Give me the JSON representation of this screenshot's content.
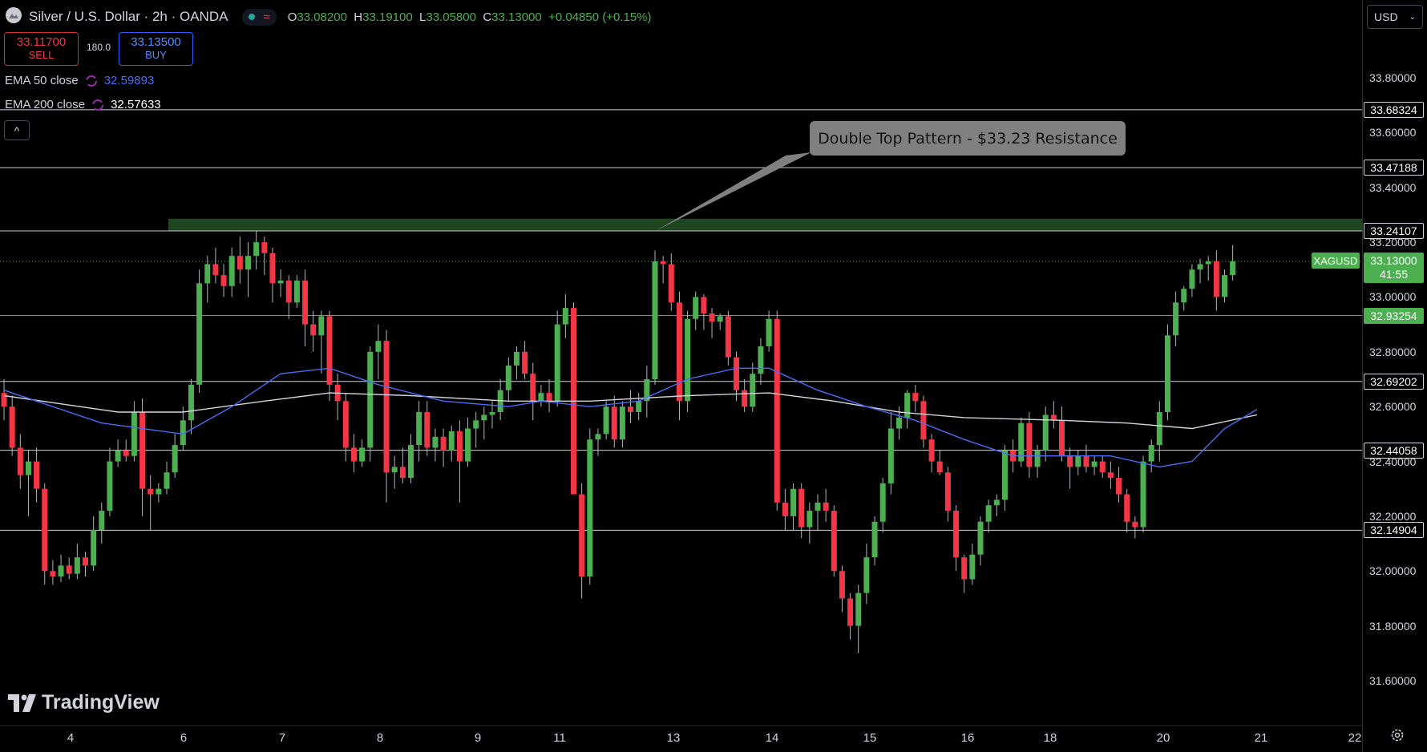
{
  "header": {
    "title": "Silver / U.S. Dollar · 2h · OANDA",
    "ohlc": [
      {
        "k": "O",
        "v": "33.08200"
      },
      {
        "k": "H",
        "v": "33.19100"
      },
      {
        "k": "L",
        "v": "33.05800"
      },
      {
        "k": "C",
        "v": "33.13000"
      }
    ],
    "change": "+0.04850 (+0.15%)"
  },
  "trade": {
    "sell_price": "33.11700",
    "sell_label": "SELL",
    "spread": "180.0",
    "buy_price": "33.13500",
    "buy_label": "BUY"
  },
  "indicators": [
    {
      "name": "EMA 50 close",
      "value": "32.59893",
      "color": "#4a6cf7"
    },
    {
      "name": "EMA 200 close",
      "value": "32.57633",
      "color": "#d1d4dc"
    }
  ],
  "currency_select": "USD",
  "symbol_tag": "XAGUSD",
  "last_price": {
    "value": "33.13000",
    "countdown": "41:55"
  },
  "callout": "Double Top Pattern - $33.23 Resistance",
  "logo_text": "TradingView",
  "colors": {
    "up": "#4caf50",
    "down": "#f23645",
    "ema50": "#4a6cf7",
    "ema200": "#d1d4dc",
    "zone": "#1e4620"
  },
  "chart_data": {
    "type": "candlestick",
    "title": "Silver / U.S. Dollar · 2h · OANDA",
    "y_ticks": [
      "33.80000",
      "33.60000",
      "33.40000",
      "33.20000",
      "33.00000",
      "32.80000",
      "32.60000",
      "32.40000",
      "32.20000",
      "32.00000",
      "31.80000",
      "31.60000"
    ],
    "y_range": [
      31.5,
      33.9
    ],
    "x_ticks": [
      "4",
      "6",
      "7",
      "8",
      "9",
      "11",
      "13",
      "14",
      "15",
      "16",
      "18",
      "20",
      "21",
      "22"
    ],
    "levels": [
      {
        "value": 33.68324,
        "label": "33.68324"
      },
      {
        "value": 33.47188,
        "label": "33.47188"
      },
      {
        "value": 33.24107,
        "label": "33.24107"
      },
      {
        "value": 32.93254,
        "label": "32.93254",
        "style": "green"
      },
      {
        "value": 32.69202,
        "label": "32.69202"
      },
      {
        "value": 32.44058,
        "label": "32.44058"
      },
      {
        "value": 32.14904,
        "label": "32.14904"
      }
    ],
    "resistance_zone": [
      33.24,
      33.28
    ],
    "last_price": 33.13,
    "candles": [
      [
        32.65,
        32.7,
        32.55,
        32.6
      ],
      [
        32.6,
        32.64,
        32.42,
        32.45
      ],
      [
        32.45,
        32.5,
        32.3,
        32.35
      ],
      [
        32.35,
        32.44,
        32.2,
        32.4
      ],
      [
        32.4,
        32.45,
        32.25,
        32.3
      ],
      [
        32.3,
        32.32,
        31.95,
        32.0
      ],
      [
        32.0,
        32.04,
        31.95,
        31.98
      ],
      [
        31.98,
        32.06,
        31.96,
        32.02
      ],
      [
        32.02,
        32.05,
        31.97,
        31.99
      ],
      [
        31.99,
        32.1,
        31.97,
        32.05
      ],
      [
        32.05,
        32.07,
        31.98,
        32.02
      ],
      [
        32.02,
        32.2,
        32.0,
        32.15
      ],
      [
        32.15,
        32.25,
        32.1,
        32.22
      ],
      [
        32.22,
        32.45,
        32.2,
        32.4
      ],
      [
        32.4,
        32.48,
        32.38,
        32.44
      ],
      [
        32.44,
        32.48,
        32.4,
        32.42
      ],
      [
        32.42,
        32.62,
        32.4,
        32.58
      ],
      [
        32.58,
        32.63,
        32.2,
        32.3
      ],
      [
        32.3,
        32.35,
        32.15,
        32.28
      ],
      [
        32.28,
        32.32,
        32.25,
        32.3
      ],
      [
        32.3,
        32.4,
        32.28,
        32.36
      ],
      [
        32.36,
        32.5,
        32.34,
        32.46
      ],
      [
        32.46,
        32.6,
        32.44,
        32.55
      ],
      [
        32.55,
        32.7,
        32.5,
        32.68
      ],
      [
        32.68,
        33.1,
        32.65,
        33.05
      ],
      [
        33.05,
        33.15,
        32.98,
        33.12
      ],
      [
        33.12,
        33.18,
        33.05,
        33.08
      ],
      [
        33.08,
        33.12,
        33.0,
        33.04
      ],
      [
        33.04,
        33.18,
        33.0,
        33.15
      ],
      [
        33.15,
        33.22,
        33.05,
        33.1
      ],
      [
        33.1,
        33.2,
        33.0,
        33.15
      ],
      [
        33.15,
        33.24,
        33.1,
        33.2
      ],
      [
        33.2,
        33.22,
        33.08,
        33.16
      ],
      [
        33.16,
        33.18,
        32.98,
        33.05
      ],
      [
        33.05,
        33.1,
        33.0,
        33.06
      ],
      [
        33.06,
        33.08,
        32.92,
        32.98
      ],
      [
        32.98,
        33.08,
        32.96,
        33.06
      ],
      [
        33.06,
        33.1,
        32.82,
        32.9
      ],
      [
        32.9,
        32.95,
        32.8,
        32.86
      ],
      [
        32.86,
        32.95,
        32.72,
        32.93
      ],
      [
        32.93,
        32.95,
        32.62,
        32.68
      ],
      [
        32.68,
        32.72,
        32.55,
        32.62
      ],
      [
        32.62,
        32.65,
        32.4,
        32.45
      ],
      [
        32.45,
        32.5,
        32.36,
        32.4
      ],
      [
        32.4,
        32.48,
        32.38,
        32.45
      ],
      [
        32.45,
        32.82,
        32.4,
        32.8
      ],
      [
        32.8,
        32.9,
        32.7,
        32.84
      ],
      [
        32.84,
        32.88,
        32.25,
        32.36
      ],
      [
        32.36,
        32.42,
        32.3,
        32.38
      ],
      [
        32.38,
        32.45,
        32.32,
        32.34
      ],
      [
        32.34,
        32.5,
        32.32,
        32.46
      ],
      [
        32.46,
        32.62,
        32.4,
        32.58
      ],
      [
        32.58,
        32.62,
        32.42,
        32.45
      ],
      [
        32.45,
        32.52,
        32.4,
        32.49
      ],
      [
        32.49,
        32.52,
        32.38,
        32.44
      ],
      [
        32.44,
        32.53,
        32.4,
        32.51
      ],
      [
        32.51,
        32.55,
        32.25,
        32.4
      ],
      [
        32.4,
        32.56,
        32.38,
        32.52
      ],
      [
        32.52,
        32.58,
        32.45,
        32.55
      ],
      [
        32.55,
        32.6,
        32.48,
        32.57
      ],
      [
        32.57,
        32.62,
        32.52,
        32.58
      ],
      [
        32.58,
        32.7,
        32.55,
        32.66
      ],
      [
        32.66,
        32.78,
        32.62,
        32.75
      ],
      [
        32.75,
        32.82,
        32.7,
        32.8
      ],
      [
        32.8,
        32.84,
        32.7,
        32.72
      ],
      [
        32.72,
        32.76,
        32.55,
        32.62
      ],
      [
        32.62,
        32.68,
        32.6,
        32.65
      ],
      [
        32.65,
        32.7,
        32.58,
        32.62
      ],
      [
        32.62,
        32.95,
        32.6,
        32.9
      ],
      [
        32.9,
        33.01,
        32.85,
        32.96
      ],
      [
        32.96,
        32.98,
        32.28,
        32.28
      ],
      [
        32.28,
        32.32,
        31.9,
        31.98
      ],
      [
        31.98,
        32.52,
        31.95,
        32.48
      ],
      [
        32.48,
        32.52,
        32.42,
        32.5
      ],
      [
        32.5,
        32.62,
        32.48,
        32.6
      ],
      [
        32.6,
        32.64,
        32.45,
        32.48
      ],
      [
        32.48,
        32.62,
        32.45,
        32.6
      ],
      [
        32.6,
        32.66,
        32.54,
        32.58
      ],
      [
        32.58,
        32.65,
        32.55,
        32.62
      ],
      [
        32.62,
        32.75,
        32.56,
        32.7
      ],
      [
        32.7,
        33.17,
        32.68,
        33.13
      ],
      [
        33.13,
        33.15,
        33.05,
        33.12
      ],
      [
        33.12,
        33.16,
        32.95,
        32.98
      ],
      [
        32.98,
        33.02,
        32.55,
        32.62
      ],
      [
        32.62,
        32.95,
        32.58,
        32.92
      ],
      [
        32.92,
        33.02,
        32.88,
        33.0
      ],
      [
        33.0,
        33.01,
        32.88,
        32.94
      ],
      [
        32.94,
        32.96,
        32.85,
        32.91
      ],
      [
        32.91,
        32.94,
        32.88,
        32.93
      ],
      [
        32.93,
        32.95,
        32.75,
        32.78
      ],
      [
        32.78,
        32.8,
        32.62,
        32.66
      ],
      [
        32.66,
        32.7,
        32.58,
        32.6
      ],
      [
        32.6,
        32.76,
        32.58,
        32.72
      ],
      [
        32.72,
        32.85,
        32.68,
        32.82
      ],
      [
        32.82,
        32.95,
        32.8,
        32.92
      ],
      [
        32.92,
        32.95,
        32.22,
        32.25
      ],
      [
        32.25,
        32.3,
        32.15,
        32.2
      ],
      [
        32.2,
        32.32,
        32.15,
        32.3
      ],
      [
        32.3,
        32.32,
        32.12,
        32.16
      ],
      [
        32.16,
        32.25,
        32.1,
        32.22
      ],
      [
        32.22,
        32.28,
        32.15,
        32.25
      ],
      [
        32.25,
        32.3,
        32.18,
        32.22
      ],
      [
        32.22,
        32.24,
        31.98,
        32.0
      ],
      [
        32.0,
        32.02,
        31.85,
        31.9
      ],
      [
        31.9,
        31.92,
        31.75,
        31.8
      ],
      [
        31.8,
        31.95,
        31.7,
        31.92
      ],
      [
        31.92,
        32.1,
        31.88,
        32.05
      ],
      [
        32.05,
        32.2,
        32.02,
        32.18
      ],
      [
        32.18,
        32.34,
        32.14,
        32.32
      ],
      [
        32.32,
        32.58,
        32.28,
        32.52
      ],
      [
        32.52,
        32.6,
        32.48,
        32.56
      ],
      [
        32.56,
        32.66,
        32.52,
        32.65
      ],
      [
        32.65,
        32.68,
        32.58,
        32.62
      ],
      [
        32.62,
        32.64,
        32.45,
        32.48
      ],
      [
        32.48,
        32.5,
        32.36,
        32.4
      ],
      [
        32.4,
        32.44,
        32.35,
        32.36
      ],
      [
        32.36,
        32.38,
        32.18,
        32.22
      ],
      [
        32.22,
        32.24,
        32.0,
        32.05
      ],
      [
        32.05,
        32.06,
        31.92,
        31.97
      ],
      [
        31.97,
        32.1,
        31.95,
        32.06
      ],
      [
        32.06,
        32.2,
        32.02,
        32.18
      ],
      [
        32.18,
        32.26,
        32.14,
        32.24
      ],
      [
        32.24,
        32.28,
        32.2,
        32.26
      ],
      [
        32.26,
        32.46,
        32.22,
        32.44
      ],
      [
        32.44,
        32.48,
        32.36,
        32.4
      ],
      [
        32.4,
        32.56,
        32.38,
        32.54
      ],
      [
        32.54,
        32.58,
        32.34,
        32.38
      ],
      [
        32.38,
        32.46,
        32.34,
        32.44
      ],
      [
        32.44,
        32.6,
        32.4,
        32.57
      ],
      [
        32.57,
        32.62,
        32.52,
        32.55
      ],
      [
        32.55,
        32.6,
        32.4,
        32.42
      ],
      [
        32.42,
        32.45,
        32.3,
        32.38
      ],
      [
        32.38,
        32.44,
        32.35,
        32.42
      ],
      [
        32.42,
        32.46,
        32.36,
        32.38
      ],
      [
        32.38,
        32.42,
        32.35,
        32.4
      ],
      [
        32.4,
        32.42,
        32.34,
        32.36
      ],
      [
        32.36,
        32.4,
        32.3,
        32.34
      ],
      [
        32.34,
        32.38,
        32.25,
        32.28
      ],
      [
        32.28,
        32.3,
        32.14,
        32.18
      ],
      [
        32.18,
        32.2,
        32.12,
        32.16
      ],
      [
        32.16,
        32.42,
        32.14,
        32.4
      ],
      [
        32.4,
        32.48,
        32.36,
        32.46
      ],
      [
        32.46,
        32.62,
        32.4,
        32.58
      ],
      [
        32.58,
        32.9,
        32.55,
        32.86
      ],
      [
        32.86,
        33.02,
        32.82,
        32.98
      ],
      [
        32.98,
        33.04,
        32.95,
        33.03
      ],
      [
        33.03,
        33.12,
        33.0,
        33.1
      ],
      [
        33.1,
        33.14,
        33.05,
        33.12
      ],
      [
        33.12,
        33.15,
        33.06,
        33.13
      ],
      [
        33.13,
        33.17,
        32.95,
        33.0
      ],
      [
        33.0,
        33.1,
        32.98,
        33.08
      ],
      [
        33.08,
        33.19,
        33.06,
        33.13
      ]
    ],
    "ema50": [
      [
        0,
        32.66
      ],
      [
        12,
        32.54
      ],
      [
        22,
        32.5
      ],
      [
        28,
        32.6
      ],
      [
        34,
        32.72
      ],
      [
        40,
        32.74
      ],
      [
        46,
        32.68
      ],
      [
        54,
        32.62
      ],
      [
        62,
        32.6
      ],
      [
        66,
        32.62
      ],
      [
        72,
        32.6
      ],
      [
        78,
        32.62
      ],
      [
        84,
        32.7
      ],
      [
        90,
        32.74
      ],
      [
        94,
        32.74
      ],
      [
        100,
        32.66
      ],
      [
        106,
        32.6
      ],
      [
        112,
        32.55
      ],
      [
        118,
        32.48
      ],
      [
        124,
        32.42
      ],
      [
        130,
        32.42
      ],
      [
        136,
        32.42
      ],
      [
        142,
        32.38
      ],
      [
        146,
        32.4
      ],
      [
        150,
        32.52
      ],
      [
        154,
        32.59
      ]
    ],
    "ema200": [
      [
        0,
        32.64
      ],
      [
        14,
        32.58
      ],
      [
        22,
        32.58
      ],
      [
        32,
        32.62
      ],
      [
        40,
        32.65
      ],
      [
        50,
        32.64
      ],
      [
        62,
        32.62
      ],
      [
        72,
        32.62
      ],
      [
        84,
        32.64
      ],
      [
        94,
        32.65
      ],
      [
        102,
        32.62
      ],
      [
        110,
        32.58
      ],
      [
        118,
        32.56
      ],
      [
        130,
        32.55
      ],
      [
        138,
        32.54
      ],
      [
        146,
        32.52
      ],
      [
        154,
        32.57
      ]
    ]
  }
}
